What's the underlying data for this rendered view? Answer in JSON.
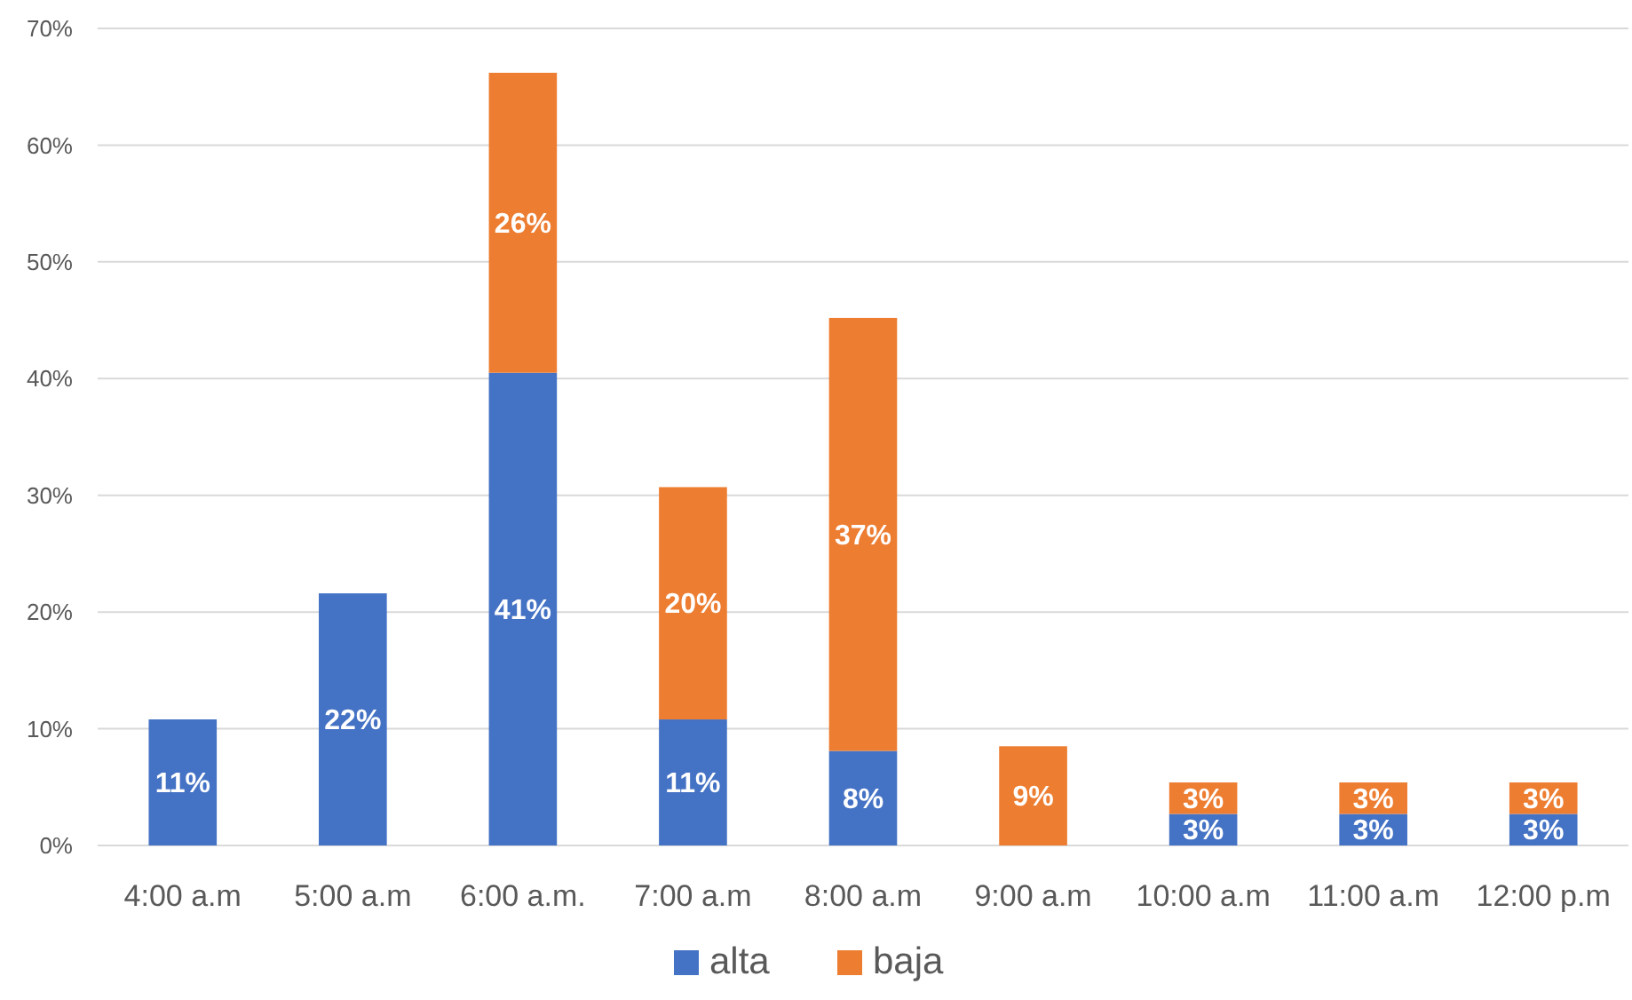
{
  "chart_data": {
    "type": "bar",
    "stacked": true,
    "categories": [
      "4:00 a.m",
      "5:00 a.m",
      "6:00 a.m.",
      "7:00 a.m",
      "8:00 a.m",
      "9:00 a.m",
      "10:00 a.m",
      "11:00 a.m",
      "12:00 p.m"
    ],
    "series": [
      {
        "name": "alta",
        "color": "#4472c4",
        "values": [
          10.8,
          21.6,
          40.5,
          10.8,
          8.1,
          null,
          2.7,
          2.7,
          2.7
        ],
        "value_labels": [
          "11%",
          "22%",
          "41%",
          "11%",
          "8%",
          null,
          "3%",
          "3%",
          "3%"
        ]
      },
      {
        "name": "baja",
        "color": "#ed7d31",
        "values": [
          null,
          null,
          25.7,
          19.9,
          37.1,
          8.5,
          2.7,
          2.7,
          2.7
        ],
        "value_labels": [
          null,
          null,
          "26%",
          "20%",
          "37%",
          "9%",
          "3%",
          "3%",
          "3%"
        ]
      }
    ],
    "ylim": [
      0,
      70
    ],
    "yticks": [
      {
        "value": 0,
        "label": "0%"
      },
      {
        "value": 10,
        "label": "10%"
      },
      {
        "value": 20,
        "label": "20%"
      },
      {
        "value": 30,
        "label": "30%"
      },
      {
        "value": 40,
        "label": "40%"
      },
      {
        "value": 50,
        "label": "50%"
      },
      {
        "value": 60,
        "label": "60%"
      },
      {
        "value": 70,
        "label": "70%"
      }
    ],
    "grid": "y",
    "legend": "bottom"
  }
}
